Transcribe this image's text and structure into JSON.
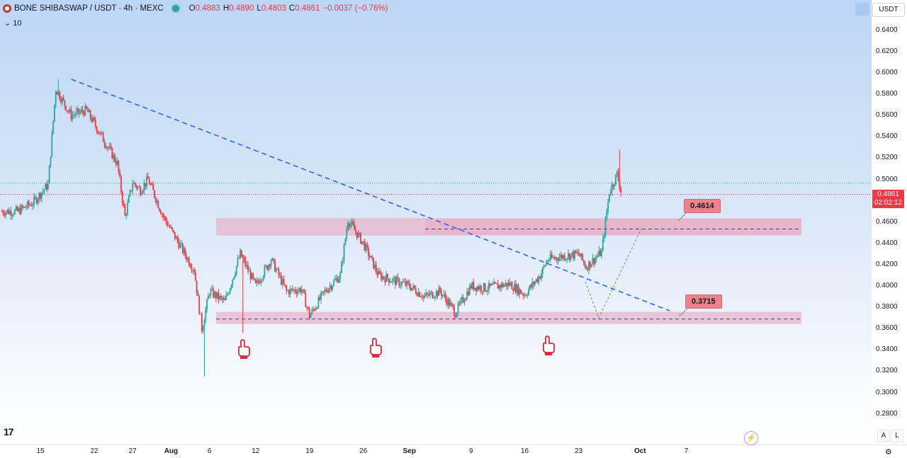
{
  "header": {
    "symbol_title": "BONE SHIBASWAP / USDT · 4h · MEXC",
    "ohlc": [
      {
        "k": "O",
        "v": "0.4883"
      },
      {
        "k": "H",
        "v": "0.4890"
      },
      {
        "k": "L",
        "v": "0.4803"
      },
      {
        "k": "C",
        "v": "0.4861"
      }
    ],
    "change": "−0.0037 (−0.76%)",
    "volume_toggle": "⌄  10"
  },
  "toolbar": {
    "currency_button": "USDT",
    "auto_a": "A",
    "log_l": "L"
  },
  "current_price": {
    "value": "0.4861",
    "countdown": "02:02:12",
    "price": 0.4861
  },
  "levels": [
    {
      "label": "0.4614",
      "price": 0.4614
    },
    {
      "label": "0.3715",
      "price": 0.3715
    }
  ],
  "colors": {
    "up": "#26a69a",
    "down": "#f23645",
    "trendline": "#2962ff",
    "zone": "#e8b4c8"
  },
  "icons": {
    "bounce_marker": "pointing-hand-icon",
    "logo": "tradingview-logo-icon"
  },
  "chart_data": {
    "type": "candlestick",
    "timeframe": "4h",
    "y_ticks": [
      "0.6400",
      "0.6200",
      "0.6000",
      "0.5800",
      "0.5600",
      "0.5400",
      "0.5200",
      "0.5000",
      "0.4800",
      "0.4600",
      "0.4400",
      "0.4200",
      "0.4000",
      "0.3800",
      "0.3600",
      "0.3400",
      "0.3200",
      "0.3000",
      "0.2800"
    ],
    "x_ticks": [
      "15",
      "22",
      "27",
      "Aug",
      "6",
      "12",
      "19",
      "26",
      "Sep",
      "9",
      "16",
      "23",
      "Oct",
      "7"
    ],
    "ylim": [
      0.27,
      0.645
    ],
    "close_path": [
      {
        "date": "2024-07-12",
        "close": 0.47
      },
      {
        "date": "2024-07-14",
        "close": 0.478
      },
      {
        "date": "2024-07-16",
        "close": 0.495
      },
      {
        "date": "2024-07-17",
        "close": 0.585
      },
      {
        "date": "2024-07-19",
        "close": 0.56
      },
      {
        "date": "2024-07-21",
        "close": 0.565
      },
      {
        "date": "2024-07-23",
        "close": 0.54
      },
      {
        "date": "2024-07-25",
        "close": 0.515
      },
      {
        "date": "2024-07-26",
        "close": 0.465
      },
      {
        "date": "2024-07-27",
        "close": 0.497
      },
      {
        "date": "2024-07-28",
        "close": 0.49
      },
      {
        "date": "2024-07-29",
        "close": 0.5
      },
      {
        "date": "2024-07-31",
        "close": 0.465
      },
      {
        "date": "2024-08-02",
        "close": 0.44
      },
      {
        "date": "2024-08-04",
        "close": 0.415
      },
      {
        "date": "2024-08-05",
        "close": 0.36
      },
      {
        "date": "2024-08-06",
        "close": 0.395
      },
      {
        "date": "2024-08-08",
        "close": 0.385
      },
      {
        "date": "2024-08-10",
        "close": 0.43
      },
      {
        "date": "2024-08-12",
        "close": 0.4
      },
      {
        "date": "2024-08-14",
        "close": 0.425
      },
      {
        "date": "2024-08-16",
        "close": 0.395
      },
      {
        "date": "2024-08-18",
        "close": 0.397
      },
      {
        "date": "2024-08-19",
        "close": 0.372
      },
      {
        "date": "2024-08-21",
        "close": 0.395
      },
      {
        "date": "2024-08-23",
        "close": 0.41
      },
      {
        "date": "2024-08-24",
        "close": 0.462
      },
      {
        "date": "2024-08-26",
        "close": 0.44
      },
      {
        "date": "2024-08-28",
        "close": 0.41
      },
      {
        "date": "2024-08-30",
        "close": 0.405
      },
      {
        "date": "2024-09-01",
        "close": 0.4
      },
      {
        "date": "2024-09-03",
        "close": 0.39
      },
      {
        "date": "2024-09-05",
        "close": 0.395
      },
      {
        "date": "2024-09-07",
        "close": 0.375
      },
      {
        "date": "2024-09-09",
        "close": 0.4
      },
      {
        "date": "2024-09-11",
        "close": 0.398
      },
      {
        "date": "2024-09-14",
        "close": 0.402
      },
      {
        "date": "2024-09-16",
        "close": 0.392
      },
      {
        "date": "2024-09-18",
        "close": 0.41
      },
      {
        "date": "2024-09-19",
        "close": 0.425
      },
      {
        "date": "2024-09-21",
        "close": 0.428
      },
      {
        "date": "2024-09-23",
        "close": 0.43
      },
      {
        "date": "2024-09-24",
        "close": 0.418
      },
      {
        "date": "2024-09-26",
        "close": 0.432
      },
      {
        "date": "2024-09-27",
        "close": 0.488
      },
      {
        "date": "2024-09-28",
        "close": 0.505
      },
      {
        "date": "2024-09-28",
        "close": 0.486
      }
    ],
    "notable_wicks": [
      {
        "date": "2024-07-17",
        "high": 0.594
      },
      {
        "date": "2024-08-05",
        "low": 0.315
      },
      {
        "date": "2024-08-10",
        "low": 0.356
      },
      {
        "date": "2024-09-28",
        "high": 0.528
      }
    ],
    "support_zone": [
      0.365,
      0.375
    ],
    "resistance_zone": [
      0.448,
      0.463
    ],
    "trendline": [
      {
        "date": "2024-07-17",
        "price": 0.594
      },
      {
        "date": "2024-09-18",
        "price": 0.375
      }
    ],
    "projection_path": [
      {
        "date": "2024-09-09",
        "price": 0.399
      },
      {
        "date": "2024-09-12",
        "price": 0.37
      },
      {
        "date": "2024-09-18",
        "price": 0.455
      }
    ],
    "bounce_markers": [
      "2024-08-05",
      "2024-08-19",
      "2024-09-07"
    ]
  }
}
